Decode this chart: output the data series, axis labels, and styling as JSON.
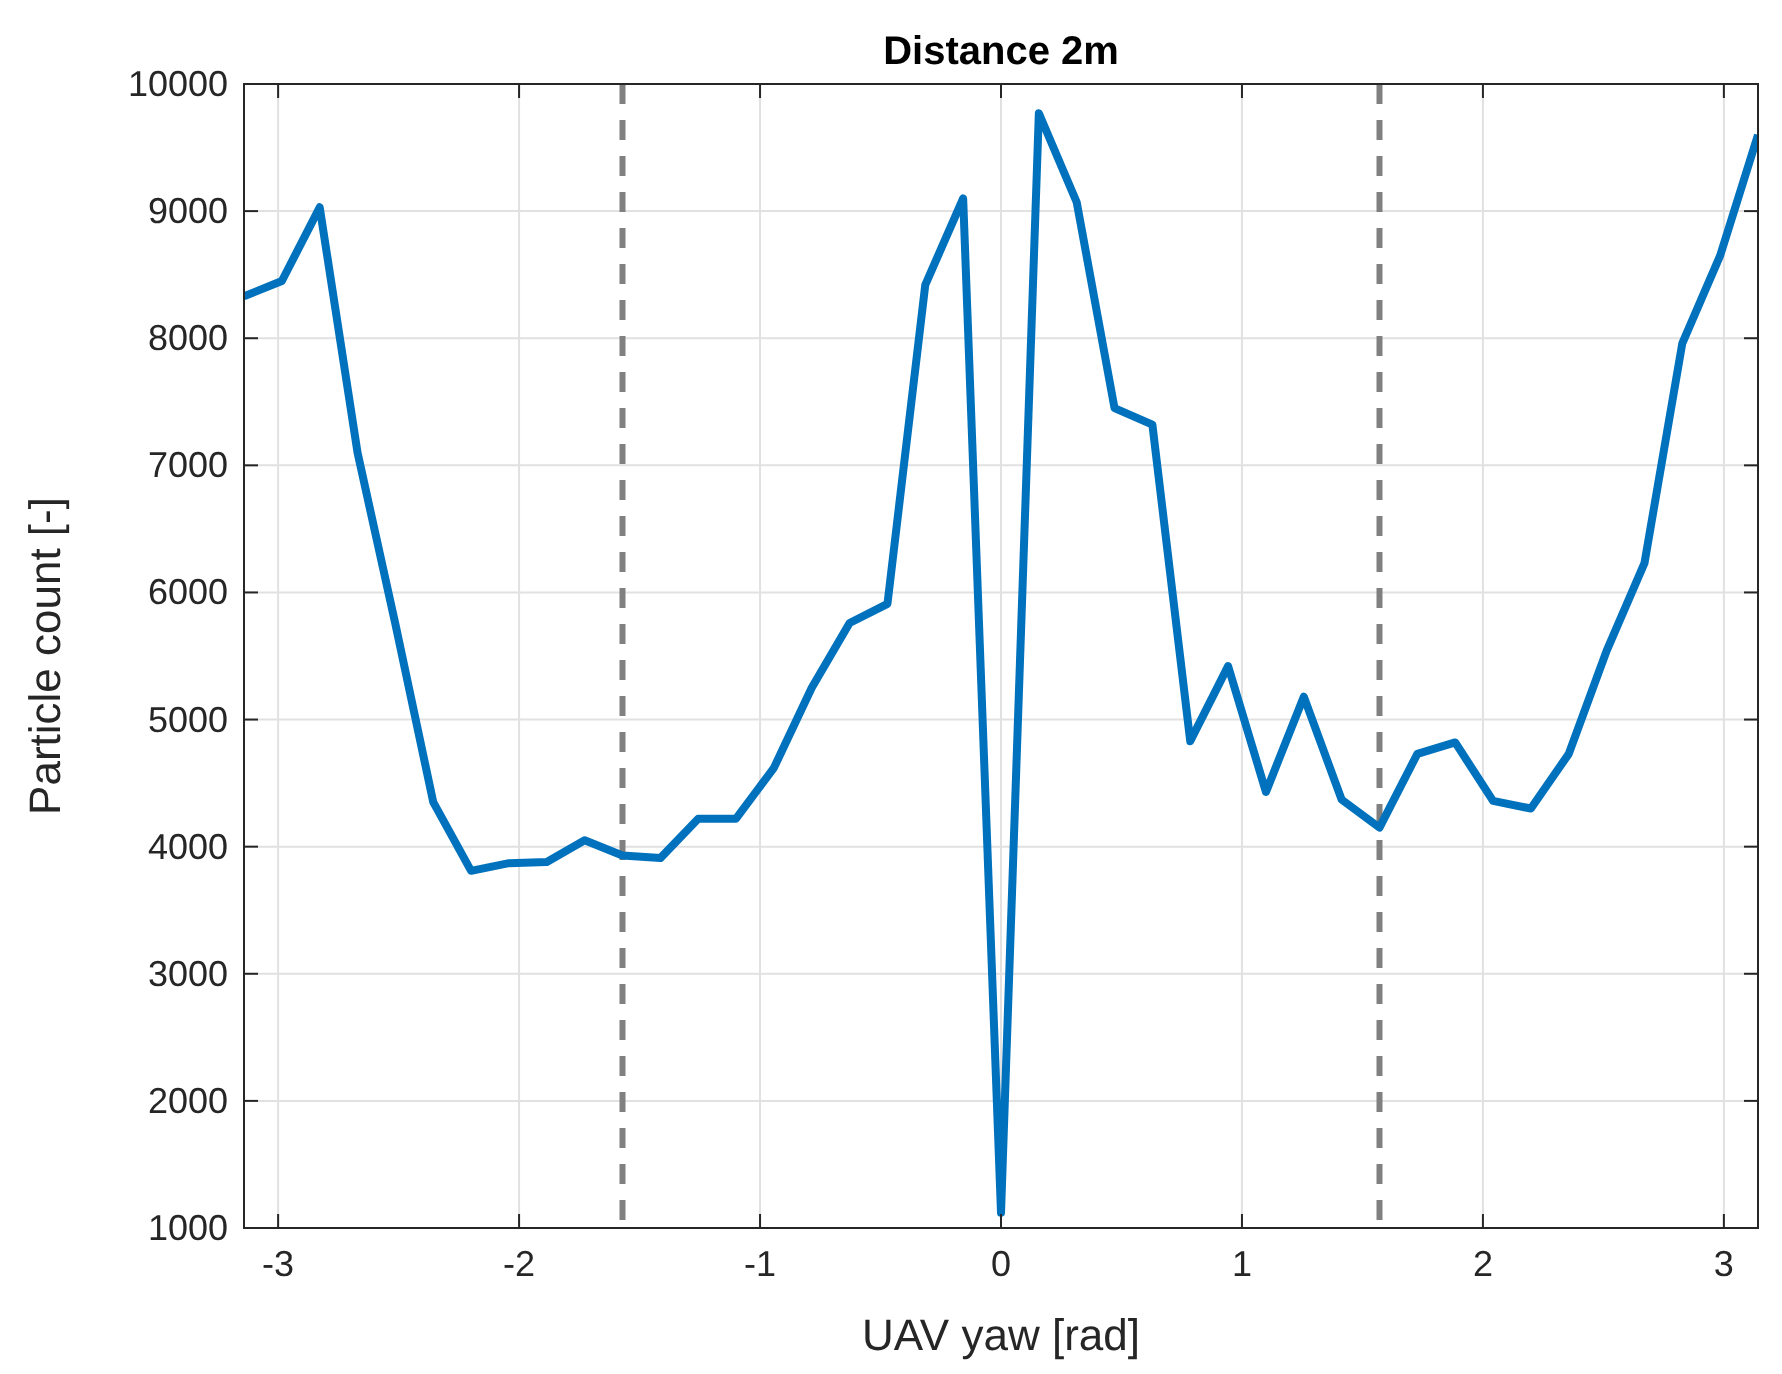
{
  "chart_data": {
    "type": "line",
    "title": "Distance 2m",
    "xlabel": "UAV yaw [rad]",
    "ylabel": "Particle count [-]",
    "x": [
      -3.1416,
      -2.9845,
      -2.8274,
      -2.6704,
      -2.5133,
      -2.3562,
      -2.1991,
      -2.042,
      -1.885,
      -1.7279,
      -1.5708,
      -1.4137,
      -1.2566,
      -1.0996,
      -0.9425,
      -0.7854,
      -0.6283,
      -0.4712,
      -0.3142,
      -0.1571,
      0,
      0.1571,
      0.3142,
      0.4712,
      0.6283,
      0.7854,
      0.9425,
      1.0996,
      1.2566,
      1.4137,
      1.5708,
      1.7279,
      1.885,
      2.042,
      2.1991,
      2.3562,
      2.5133,
      2.6704,
      2.8274,
      2.9845,
      3.1416
    ],
    "series": [
      {
        "color": "#0072bd",
        "values": [
          8330,
          8450,
          9030,
          7100,
          5750,
          4350,
          3810,
          3870,
          3880,
          4050,
          3930,
          3910,
          4220,
          4220,
          4620,
          5250,
          5760,
          5910,
          8420,
          9100,
          1120,
          9770,
          9070,
          7450,
          7320,
          4830,
          5420,
          4430,
          5180,
          4370,
          4150,
          4730,
          4820,
          4360,
          4300,
          4730,
          5540,
          6230,
          7960,
          8650,
          9600
        ]
      }
    ],
    "xlim": [
      -3.1416,
      3.1416
    ],
    "xticks": [
      -3,
      -2,
      -1,
      0,
      1,
      2,
      3
    ],
    "ylim": [
      1000,
      10000
    ],
    "yticks": [
      1000,
      2000,
      3000,
      4000,
      5000,
      6000,
      7000,
      8000,
      9000,
      10000
    ],
    "grid": true,
    "line_style": "solid",
    "marker": "none",
    "ref_lines": [
      {
        "axis": "x",
        "value": -1.5708,
        "color": "#808080",
        "line_style": "dashed"
      },
      {
        "axis": "x",
        "value": 1.5708,
        "color": "#808080",
        "line_style": "dashed"
      }
    ]
  }
}
